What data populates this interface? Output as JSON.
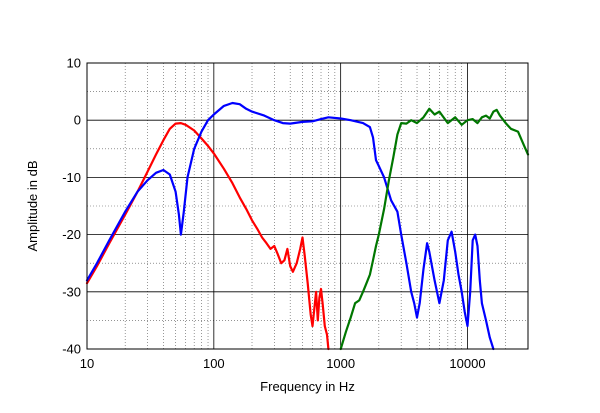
{
  "chart_data": {
    "type": "line",
    "title": "",
    "xlabel": "Frequency in Hz",
    "ylabel": "Amplitude in dB",
    "x_scale": "log",
    "xlim": [
      10,
      30000
    ],
    "ylim": [
      -40,
      10
    ],
    "x_ticks": [
      10,
      100,
      1000,
      10000
    ],
    "x_tick_labels": [
      "10",
      "100",
      "1000",
      "10000"
    ],
    "y_ticks": [
      -40,
      -30,
      -20,
      -10,
      0,
      10
    ],
    "y_tick_labels": [
      "-40",
      "-30",
      "-20",
      "-10",
      "0",
      "10"
    ],
    "grid": true,
    "legend": "none",
    "series": [
      {
        "color": "#ff0000",
        "x": [
          10,
          12,
          15,
          20,
          25,
          30,
          35,
          40,
          45,
          50,
          55,
          60,
          70,
          80,
          90,
          100,
          120,
          140,
          160,
          180,
          200,
          220,
          240,
          260,
          280,
          300,
          320,
          340,
          360,
          380,
          400,
          420,
          450,
          480,
          500,
          520,
          550,
          580,
          600,
          620,
          640,
          660,
          680,
          700,
          720,
          750,
          780,
          800
        ],
        "y": [
          -28.5,
          -25.5,
          -21.5,
          -16.5,
          -12.5,
          -9.0,
          -6.0,
          -3.5,
          -1.5,
          -0.6,
          -0.5,
          -0.8,
          -1.8,
          -3.2,
          -4.5,
          -5.8,
          -8.5,
          -11.0,
          -13.5,
          -15.5,
          -17.5,
          -19.0,
          -20.5,
          -21.5,
          -22.5,
          -22.0,
          -23.5,
          -25.0,
          -24.5,
          -22.5,
          -25.5,
          -26.5,
          -25.0,
          -22.5,
          -20.5,
          -23.5,
          -28.5,
          -34.0,
          -36.0,
          -33.0,
          -30.0,
          -35.0,
          -31.0,
          -29.5,
          -32.0,
          -36.0,
          -37.5,
          -40.0
        ]
      },
      {
        "color": "#0000ff",
        "x": [
          10,
          12,
          15,
          20,
          25,
          30,
          35,
          40,
          45,
          50,
          53,
          55,
          58,
          62,
          70,
          80,
          90,
          100,
          120,
          140,
          160,
          180,
          200,
          250,
          300,
          350,
          400,
          500,
          600,
          700,
          800,
          1000,
          1200,
          1500,
          1700,
          1800,
          1900,
          2000,
          2200,
          2500,
          2800,
          3000,
          3300,
          3600,
          3800,
          4000,
          4200,
          4500,
          4800,
          5000,
          5500,
          6000,
          6500,
          7000,
          7500,
          8000,
          8500,
          9000,
          9500,
          10000,
          10500,
          11000,
          11500,
          12000,
          12500,
          13000,
          14000,
          15000,
          16000
        ],
        "y": [
          -28.0,
          -25.0,
          -21.0,
          -16.0,
          -12.5,
          -10.5,
          -9.2,
          -8.7,
          -9.5,
          -12.5,
          -16.5,
          -20.0,
          -16.0,
          -10.0,
          -5.0,
          -2.0,
          0.0,
          1.0,
          2.5,
          3.0,
          2.8,
          2.0,
          1.5,
          0.8,
          0.0,
          -0.5,
          -0.6,
          -0.3,
          -0.2,
          0.2,
          0.5,
          0.3,
          0.0,
          -0.5,
          -1.2,
          -3.0,
          -7.0,
          -8.0,
          -10.0,
          -14.0,
          -16.0,
          -20.0,
          -25.0,
          -30.0,
          -32.0,
          -34.5,
          -32.0,
          -26.0,
          -21.5,
          -23.0,
          -28.0,
          -32.0,
          -28.0,
          -21.0,
          -19.5,
          -23.0,
          -27.0,
          -30.0,
          -33.5,
          -36.0,
          -30.0,
          -21.0,
          -20.0,
          -22.0,
          -28.0,
          -32.0,
          -35.0,
          -38.0,
          -40.0
        ]
      },
      {
        "color": "#007700",
        "x": [
          1000,
          1100,
          1200,
          1300,
          1400,
          1500,
          1600,
          1700,
          1800,
          1900,
          2000,
          2200,
          2400,
          2600,
          2800,
          3000,
          3300,
          3600,
          4000,
          4500,
          5000,
          5500,
          6000,
          7000,
          8000,
          9000,
          10000,
          11000,
          12000,
          13000,
          14000,
          15000,
          16000,
          17000,
          18000,
          20000,
          22000,
          25000,
          28000,
          30000
        ],
        "y": [
          -40.0,
          -37.0,
          -34.5,
          -32.0,
          -31.5,
          -30.0,
          -28.5,
          -27.0,
          -24.5,
          -22.0,
          -20.0,
          -15.5,
          -10.5,
          -6.5,
          -2.5,
          -0.5,
          -0.6,
          0.0,
          -0.5,
          0.5,
          2.0,
          1.0,
          1.5,
          -0.5,
          0.5,
          -0.8,
          0.0,
          0.2,
          -0.5,
          0.5,
          0.8,
          0.3,
          1.5,
          1.8,
          0.8,
          -0.5,
          -1.5,
          -2.0,
          -4.5,
          -6.0
        ]
      }
    ]
  }
}
